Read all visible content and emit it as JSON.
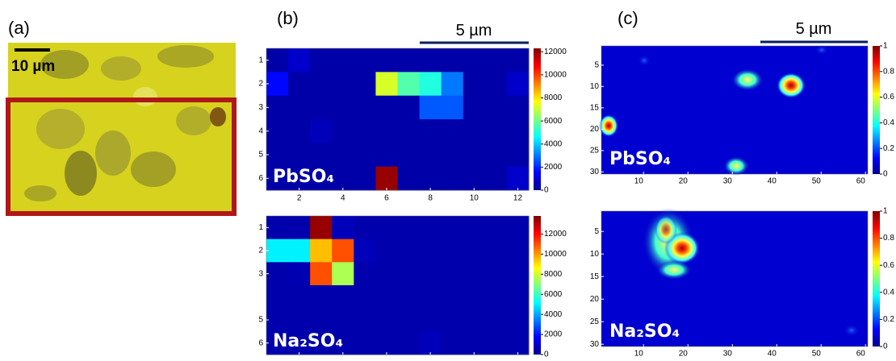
{
  "panel_a": {
    "label": "(a)",
    "scale_label": "10 µm"
  },
  "panel_b": {
    "label": "(b)",
    "scale_label": "5 µm",
    "maps": [
      {
        "compound": "PbSO₄",
        "xticks": [
          2,
          4,
          6,
          8,
          10,
          12
        ],
        "yticks": [
          1,
          2,
          3,
          4,
          5,
          6
        ],
        "clim": [
          0,
          12300
        ],
        "cticks": [
          0,
          2000,
          4000,
          6000,
          8000,
          10000,
          12000
        ],
        "values": [
          [
            500,
            900,
            500,
            500,
            500,
            500,
            500,
            500,
            500,
            500,
            500,
            500
          ],
          [
            1600,
            500,
            500,
            500,
            500,
            7200,
            5600,
            5000,
            3000,
            500,
            500,
            900
          ],
          [
            500,
            500,
            500,
            500,
            500,
            500,
            500,
            2600,
            2600,
            500,
            500,
            500
          ],
          [
            500,
            500,
            700,
            500,
            500,
            500,
            500,
            500,
            500,
            500,
            500,
            500
          ],
          [
            500,
            500,
            500,
            500,
            500,
            500,
            500,
            500,
            500,
            500,
            500,
            500
          ],
          [
            500,
            500,
            500,
            500,
            500,
            12000,
            500,
            500,
            500,
            500,
            500,
            900
          ]
        ]
      },
      {
        "compound": "Na₂SO₄",
        "xticks": [
          2,
          4,
          6,
          8,
          10,
          12
        ],
        "yticks": [
          1,
          2,
          3,
          5,
          6
        ],
        "clim": [
          0,
          13800
        ],
        "cticks": [
          0,
          2000,
          4000,
          6000,
          8000,
          10000,
          12000
        ],
        "values": [
          [
            600,
            600,
            13500,
            800,
            600,
            600,
            600,
            600,
            600,
            600,
            600,
            600
          ],
          [
            5000,
            5000,
            9500,
            11000,
            800,
            600,
            600,
            600,
            600,
            600,
            600,
            600
          ],
          [
            600,
            700,
            11000,
            7500,
            600,
            600,
            600,
            600,
            600,
            600,
            600,
            600
          ],
          [
            600,
            600,
            600,
            600,
            600,
            600,
            600,
            600,
            600,
            600,
            600,
            600
          ],
          [
            600,
            600,
            600,
            600,
            600,
            600,
            600,
            600,
            600,
            600,
            600,
            600
          ],
          [
            600,
            600,
            600,
            600,
            600,
            600,
            600,
            800,
            600,
            600,
            600,
            600
          ]
        ]
      }
    ]
  },
  "panel_c": {
    "label": "(c)",
    "scale_label": "5 µm",
    "maps": [
      {
        "compound": "PbSO₄",
        "xlim": [
          0.5,
          60.5
        ],
        "ylim": [
          0.5,
          30.5
        ],
        "xticks": [
          10,
          20,
          30,
          40,
          50,
          60
        ],
        "yticks": [
          5,
          10,
          15,
          20,
          25,
          30
        ],
        "clim": [
          0,
          1
        ],
        "cticks": [
          0,
          0.2,
          0.4,
          0.6,
          0.8,
          1
        ]
      },
      {
        "compound": "Na₂SO₄",
        "xlim": [
          0.5,
          60.5
        ],
        "ylim": [
          0.5,
          30.5
        ],
        "xticks": [
          10,
          20,
          30,
          40,
          50,
          60
        ],
        "yticks": [
          5,
          10,
          15,
          20,
          25,
          30
        ],
        "clim": [
          0,
          1
        ],
        "cticks": [
          0,
          0.2,
          0.4,
          0.6,
          0.8,
          1
        ]
      }
    ]
  }
}
